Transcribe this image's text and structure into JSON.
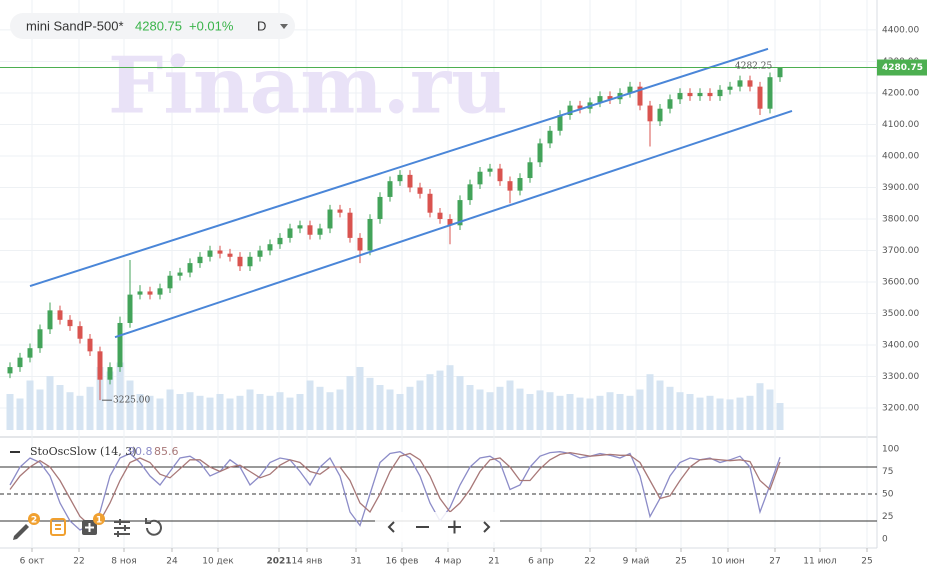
{
  "header": {
    "symbol": "mini SandP-500*",
    "price": 4280.75,
    "change": "+0.01%",
    "interval": "D",
    "watermark": "Finam.ru"
  },
  "toolbar": {
    "drawing_badge": 2,
    "layers_badge": 1
  },
  "chart_data": [
    {
      "type": "candlestick",
      "categories": [
        null,
        null,
        null,
        null,
        null,
        null,
        null,
        null,
        null,
        null,
        null,
        null,
        null,
        null,
        null,
        null,
        null,
        null,
        null,
        null,
        null,
        null,
        null,
        null,
        null,
        null,
        null,
        null,
        null,
        null,
        null,
        null,
        null,
        null,
        null,
        null,
        null,
        null,
        null,
        null,
        null,
        null,
        null,
        null,
        null,
        null,
        null,
        null,
        null,
        null,
        null,
        null,
        null,
        null,
        null,
        null,
        null,
        null,
        null,
        null,
        null,
        null,
        null,
        null,
        null,
        null,
        null,
        null,
        null,
        null,
        null,
        null,
        null,
        null,
        null,
        null,
        null,
        null
      ],
      "opens": [
        3310,
        3330,
        3360,
        3390,
        3450,
        3510,
        3480,
        3460,
        3420,
        3380,
        3290,
        3330,
        3470,
        3560,
        3570,
        3560,
        3580,
        3620,
        3630,
        3660,
        3680,
        3700,
        3690,
        3680,
        3650,
        3680,
        3700,
        3720,
        3740,
        3770,
        3780,
        3750,
        3770,
        3830,
        3820,
        3740,
        3700,
        3800,
        3870,
        3920,
        3940,
        3900,
        3880,
        3820,
        3800,
        3780,
        3860,
        3910,
        3950,
        3960,
        3920,
        3890,
        3930,
        3980,
        4040,
        4080,
        4130,
        4160,
        4150,
        4170,
        4190,
        4180,
        4200,
        4220,
        4160,
        4110,
        4150,
        4180,
        4200,
        4190,
        4200,
        4190,
        4210,
        4220,
        4240,
        4220,
        4150,
        4250
      ],
      "highs": [
        3345,
        3375,
        3405,
        3465,
        3535,
        3525,
        3495,
        3475,
        3435,
        3395,
        3345,
        3490,
        3670,
        3590,
        3585,
        3595,
        3635,
        3645,
        3675,
        3695,
        3715,
        3715,
        3705,
        3695,
        3695,
        3715,
        3735,
        3755,
        3785,
        3795,
        3795,
        3785,
        3845,
        3845,
        3835,
        3755,
        3815,
        3885,
        3935,
        3955,
        3955,
        3915,
        3895,
        3835,
        3815,
        3875,
        3925,
        3965,
        3975,
        3975,
        3935,
        3945,
        3995,
        4055,
        4095,
        4145,
        4175,
        4175,
        4185,
        4205,
        4205,
        4215,
        4235,
        4235,
        4175,
        4165,
        4195,
        4215,
        4215,
        4215,
        4215,
        4225,
        4235,
        4255,
        4255,
        4235,
        4265,
        4282.25
      ],
      "lows": [
        3295,
        3315,
        3345,
        3375,
        3435,
        3465,
        3445,
        3405,
        3365,
        3225,
        3275,
        3315,
        3455,
        3545,
        3545,
        3545,
        3565,
        3605,
        3615,
        3645,
        3665,
        3675,
        3665,
        3635,
        3635,
        3665,
        3685,
        3705,
        3725,
        3755,
        3735,
        3735,
        3755,
        3805,
        3725,
        3660,
        3685,
        3785,
        3855,
        3905,
        3885,
        3865,
        3805,
        3785,
        3720,
        3765,
        3845,
        3895,
        3935,
        3905,
        3850,
        3875,
        3915,
        3965,
        4025,
        4065,
        4115,
        4135,
        4135,
        4155,
        4165,
        4165,
        4185,
        4145,
        4030,
        4095,
        4135,
        4165,
        4175,
        4175,
        4175,
        4175,
        4195,
        4205,
        4205,
        4130,
        4135,
        4235
      ],
      "closes": [
        3330,
        3360,
        3390,
        3450,
        3510,
        3480,
        3460,
        3420,
        3380,
        3290,
        3330,
        3470,
        3560,
        3570,
        3560,
        3580,
        3620,
        3630,
        3660,
        3680,
        3700,
        3690,
        3680,
        3650,
        3680,
        3700,
        3720,
        3740,
        3770,
        3780,
        3750,
        3770,
        3830,
        3820,
        3740,
        3700,
        3800,
        3870,
        3920,
        3940,
        3900,
        3880,
        3820,
        3800,
        3780,
        3860,
        3910,
        3950,
        3960,
        3920,
        3890,
        3930,
        3980,
        4040,
        4080,
        4130,
        4160,
        4150,
        4170,
        4190,
        4180,
        4200,
        4220,
        4160,
        4110,
        4150,
        4180,
        4200,
        4190,
        4200,
        4190,
        4210,
        4220,
        4240,
        4220,
        4150,
        4250,
        4280.75
      ],
      "volumes": [
        40,
        35,
        55,
        45,
        60,
        50,
        42,
        38,
        48,
        70,
        65,
        75,
        55,
        40,
        38,
        35,
        45,
        40,
        42,
        38,
        36,
        40,
        35,
        38,
        45,
        40,
        38,
        42,
        36,
        40,
        55,
        48,
        42,
        45,
        60,
        70,
        58,
        50,
        45,
        40,
        48,
        55,
        62,
        66,
        72,
        60,
        50,
        45,
        42,
        48,
        55,
        46,
        40,
        44,
        42,
        38,
        40,
        36,
        35,
        38,
        42,
        40,
        38,
        45,
        62,
        55,
        48,
        42,
        40,
        36,
        38,
        35,
        34,
        36,
        38,
        52,
        45,
        30
      ],
      "volume_color": "#d6e4f2",
      "up_color": "#43a35a",
      "down_color": "#d9534f",
      "xlim": [
        -1,
        86.7
      ],
      "ylim": [
        3124,
        4495
      ],
      "yticks": [
        {
          "value": 3200,
          "label": "3200.00"
        },
        {
          "value": 3300,
          "label": "3300.00"
        },
        {
          "value": 3400,
          "label": "3400.00"
        },
        {
          "value": 3500,
          "label": "3500.00"
        },
        {
          "value": 3600,
          "label": "3600.00"
        },
        {
          "value": 3700,
          "label": "3700.00"
        },
        {
          "value": 3800,
          "label": "3800.00"
        },
        {
          "value": 3900,
          "label": "3900.00"
        },
        {
          "value": 4000,
          "label": "4000.00"
        },
        {
          "value": 4100,
          "label": "4100.00"
        },
        {
          "value": 4200,
          "label": "4200.00"
        },
        {
          "value": 4300,
          "label": "4300.00"
        },
        {
          "value": 4400,
          "label": "4400.00"
        }
      ],
      "grid": true,
      "last_price": 4280.75,
      "last_price_color": "#4caf50",
      "max_marker": 4282.25,
      "min_marker": {
        "value": 3225,
        "label": "3225.00"
      },
      "trendline_color": "#4a86d8",
      "trendlines": [
        {
          "x": [
            2,
            75.8
          ],
          "y": [
            3587,
            4340
          ]
        },
        {
          "x": [
            10.5,
            78.2
          ],
          "y": [
            3425,
            4143
          ]
        }
      ]
    },
    {
      "type": "line",
      "title": "StoOscSlow (14, 3)",
      "xlim": [
        -1,
        86.7
      ],
      "xticks": [
        {
          "value": 2.2,
          "label": "6 окт"
        },
        {
          "value": 6.9,
          "label": "22"
        },
        {
          "value": 11.4,
          "label": "8 ноя"
        },
        {
          "value": 16.2,
          "label": "24"
        },
        {
          "value": 20.8,
          "label": "10 дек"
        },
        {
          "value": 26.9,
          "label": "2021"
        },
        {
          "value": 29.7,
          "label": "14 янв"
        },
        {
          "value": 34.6,
          "label": "31"
        },
        {
          "value": 39.2,
          "label": "16 фев"
        },
        {
          "value": 43.8,
          "label": "4 мар"
        },
        {
          "value": 48.4,
          "label": "21"
        },
        {
          "value": 53.1,
          "label": "6 апр"
        },
        {
          "value": 58,
          "label": "22"
        },
        {
          "value": 62.6,
          "label": "9 май"
        },
        {
          "value": 67.1,
          "label": "25"
        },
        {
          "value": 71.8,
          "label": "10 июн"
        },
        {
          "value": 76.5,
          "label": "27"
        },
        {
          "value": 81,
          "label": "11 июл"
        },
        {
          "value": 85.7,
          "label": "25"
        }
      ],
      "ylim": [
        -10,
        110
      ],
      "yticks": [
        0,
        25,
        50,
        75,
        100
      ],
      "levels": [
        80,
        50,
        20
      ],
      "series": [
        {
          "color": "#8c8cc8",
          "current": 90.8,
          "values": [
            60,
            80,
            90,
            85,
            70,
            40,
            20,
            10,
            15,
            30,
            70,
            90,
            95,
            85,
            70,
            60,
            75,
            90,
            92,
            85,
            70,
            75,
            88,
            80,
            60,
            70,
            85,
            90,
            88,
            75,
            60,
            80,
            90,
            70,
            30,
            15,
            50,
            85,
            95,
            97,
            90,
            70,
            40,
            20,
            35,
            60,
            80,
            90,
            92,
            85,
            55,
            60,
            80,
            92,
            96,
            97,
            95,
            90,
            92,
            95,
            93,
            90,
            95,
            70,
            25,
            45,
            70,
            85,
            90,
            88,
            90,
            85,
            88,
            92,
            80,
            30,
            60,
            90.8
          ]
        },
        {
          "color": "#a87878",
          "current": 85.6,
          "values": [
            55,
            70,
            80,
            87,
            80,
            65,
            45,
            25,
            15,
            20,
            40,
            65,
            85,
            90,
            85,
            72,
            68,
            78,
            88,
            88,
            80,
            75,
            80,
            82,
            75,
            68,
            72,
            82,
            88,
            85,
            75,
            72,
            80,
            80,
            65,
            40,
            30,
            50,
            75,
            92,
            95,
            88,
            70,
            45,
            30,
            40,
            55,
            75,
            88,
            90,
            80,
            65,
            65,
            78,
            88,
            94,
            96,
            94,
            92,
            93,
            94,
            93,
            93,
            85,
            65,
            45,
            48,
            65,
            80,
            88,
            89,
            88,
            87,
            88,
            86,
            65,
            55,
            85.6
          ]
        }
      ]
    }
  ]
}
